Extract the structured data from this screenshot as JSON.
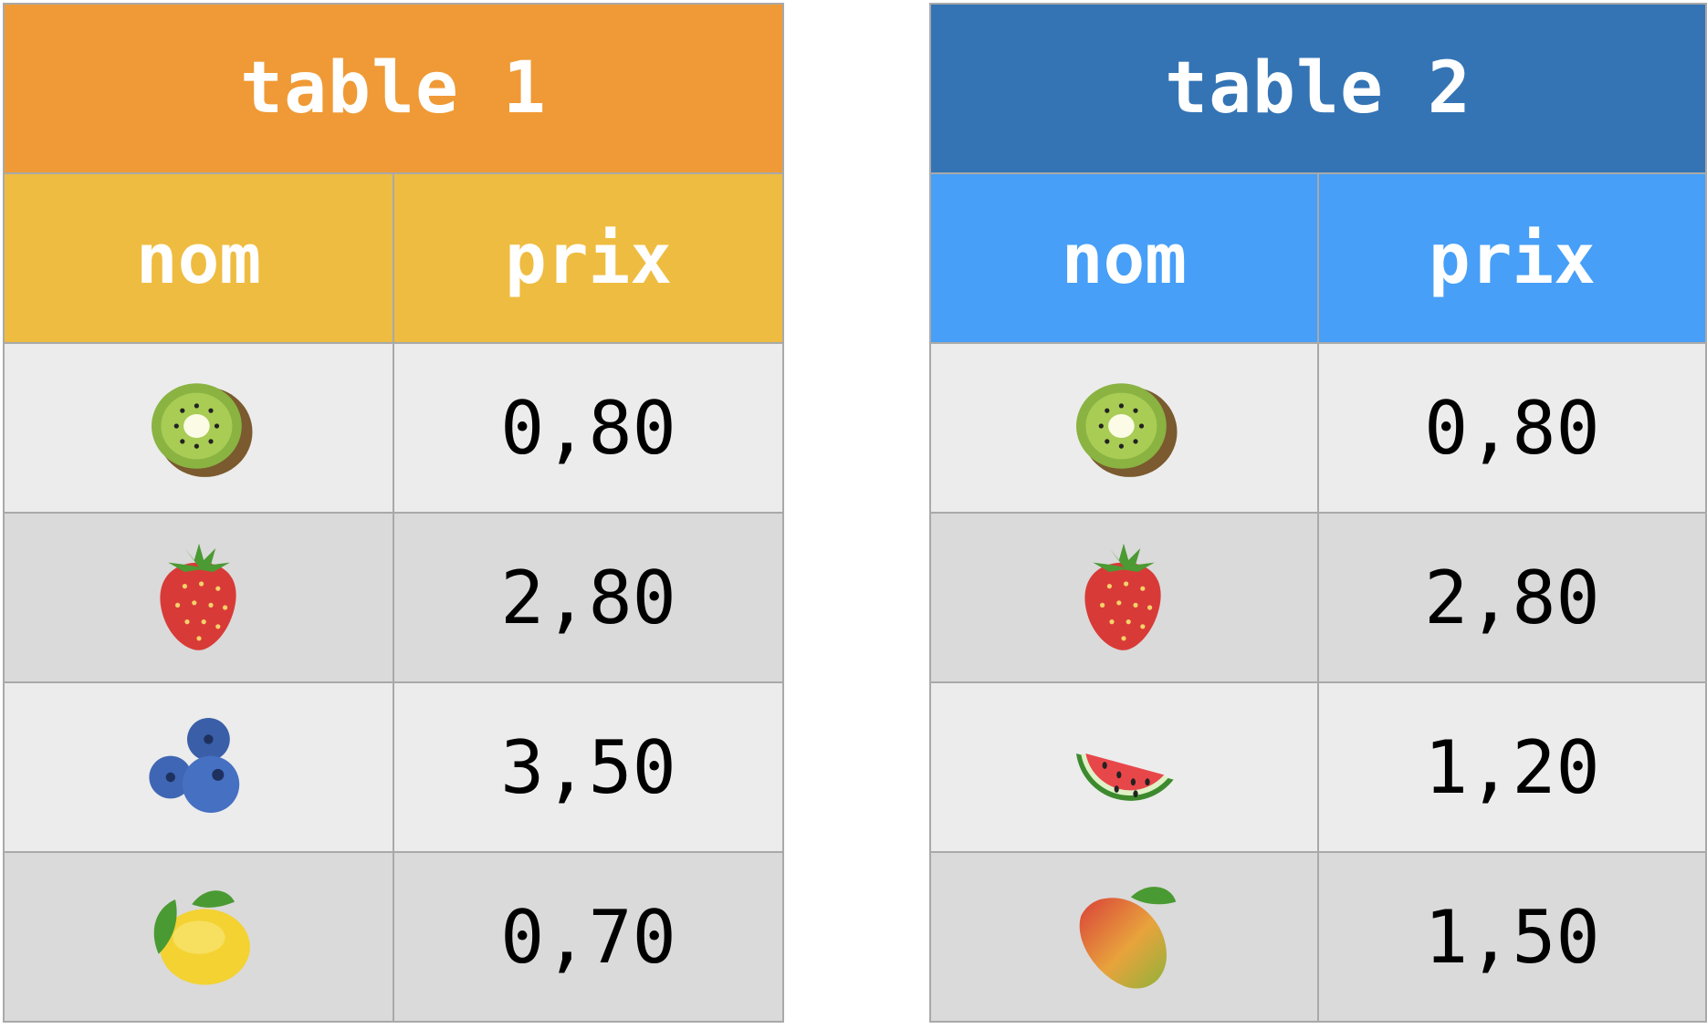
{
  "tables": [
    {
      "title": "table 1",
      "title_color": "#ef9a36",
      "header_color": "#eebc40",
      "columns": [
        "nom",
        "prix"
      ],
      "rows": [
        {
          "fruit": "kiwi-icon",
          "price": "0,80"
        },
        {
          "fruit": "strawberry-icon",
          "price": "2,80"
        },
        {
          "fruit": "blueberries-icon",
          "price": "3,50"
        },
        {
          "fruit": "lemon-icon",
          "price": "0,70"
        }
      ]
    },
    {
      "title": "table 2",
      "title_color": "#3474b5",
      "header_color": "#479ff7",
      "columns": [
        "nom",
        "prix"
      ],
      "rows": [
        {
          "fruit": "kiwi-icon",
          "price": "0,80"
        },
        {
          "fruit": "strawberry-icon",
          "price": "2,80"
        },
        {
          "fruit": "watermelon-icon",
          "price": "1,20"
        },
        {
          "fruit": "mango-icon",
          "price": "1,50"
        }
      ]
    }
  ]
}
